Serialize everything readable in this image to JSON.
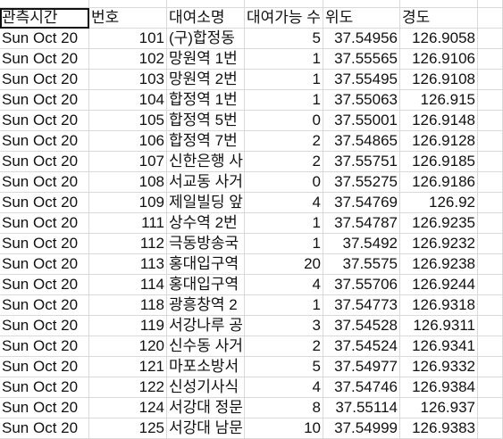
{
  "header": [
    "관측시간",
    "번호",
    "대여소명",
    "대여가능 수",
    "위도",
    "경도",
    ""
  ],
  "rows": [
    [
      "Sun Oct 20",
      "101",
      "(구)합정동",
      "5",
      "37.54956",
      "126.9058",
      ""
    ],
    [
      "Sun Oct 20",
      "102",
      "망원역 1번",
      "1",
      "37.55565",
      "126.9106",
      ""
    ],
    [
      "Sun Oct 20",
      "103",
      "망원역 2번",
      "1",
      "37.55495",
      "126.9108",
      ""
    ],
    [
      "Sun Oct 20",
      "104",
      "합정역 1번",
      "1",
      "37.55063",
      "126.915",
      ""
    ],
    [
      "Sun Oct 20",
      "105",
      "합정역 5번",
      "0",
      "37.55001",
      "126.9148",
      ""
    ],
    [
      "Sun Oct 20",
      "106",
      "합정역 7번",
      "2",
      "37.54865",
      "126.9128",
      ""
    ],
    [
      "Sun Oct 20",
      "107",
      "신한은행 사",
      "2",
      "37.55751",
      "126.9185",
      ""
    ],
    [
      "Sun Oct 20",
      "108",
      "서교동 사거",
      "0",
      "37.55275",
      "126.9186",
      ""
    ],
    [
      "Sun Oct 20",
      "109",
      "제일빌딩 앞",
      "4",
      "37.54769",
      "126.92",
      ""
    ],
    [
      "Sun Oct 20",
      "111",
      "상수역 2번",
      "1",
      "37.54787",
      "126.9235",
      ""
    ],
    [
      "Sun Oct 20",
      "112",
      "극동방송국",
      "1",
      "37.5492",
      "126.9232",
      ""
    ],
    [
      "Sun Oct 20",
      "113",
      "홍대입구역",
      "20",
      "37.5575",
      "126.9238",
      ""
    ],
    [
      "Sun Oct 20",
      "114",
      "홍대입구역",
      "4",
      "37.55706",
      "126.9244",
      ""
    ],
    [
      "Sun Oct 20",
      "118",
      "광흥창역 2",
      "1",
      "37.54773",
      "126.9318",
      ""
    ],
    [
      "Sun Oct 20",
      "119",
      "서강나루 공",
      "3",
      "37.54528",
      "126.9311",
      ""
    ],
    [
      "Sun Oct 20",
      "120",
      "신수동 사거",
      "2",
      "37.54524",
      "126.9341",
      ""
    ],
    [
      "Sun Oct 20",
      "121",
      "마포소방서",
      "5",
      "37.54977",
      "126.9332",
      ""
    ],
    [
      "Sun Oct 20",
      "122",
      "신성기사식",
      "4",
      "37.54746",
      "126.9384",
      ""
    ],
    [
      "Sun Oct 20",
      "124",
      "서강대 정문",
      "8",
      "37.55114",
      "126.937",
      ""
    ],
    [
      "Sun Oct 20",
      "125",
      "서강대 남문",
      "10",
      "37.54999",
      "126.9383",
      ""
    ]
  ]
}
